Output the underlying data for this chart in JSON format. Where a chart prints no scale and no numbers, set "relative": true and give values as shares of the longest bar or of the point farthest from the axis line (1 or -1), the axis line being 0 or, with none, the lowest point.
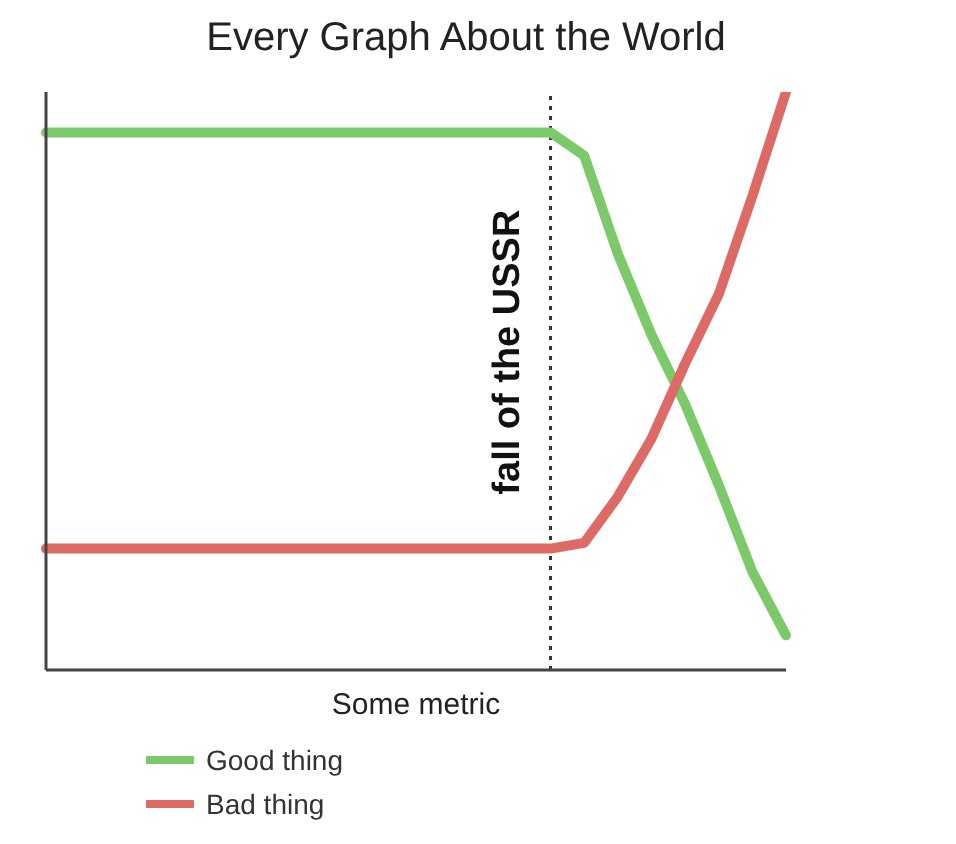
{
  "chart_data": {
    "type": "line",
    "title": "Every Graph About the World",
    "xlabel": "Some metric",
    "relative": true,
    "legend": "bottom left",
    "marker": "none",
    "line_style": "solid",
    "grid": false,
    "categories": [
      null,
      null,
      null,
      null,
      null,
      null,
      null,
      null,
      null,
      null,
      null,
      null,
      null,
      null,
      null,
      null,
      null,
      null,
      null,
      null,
      null,
      null,
      null
    ],
    "annotations": [
      "fall of the USSR"
    ],
    "series": [
      {
        "name": "Good thing",
        "color": "#7cc96a",
        "values": [
          0.93,
          0.93,
          0.93,
          0.93,
          0.93,
          0.93,
          0.93,
          0.93,
          0.93,
          0.93,
          0.93,
          0.93,
          0.93,
          0.93,
          0.93,
          0.93,
          0.89,
          0.72,
          0.58,
          0.46,
          0.32,
          0.17,
          0.06
        ]
      },
      {
        "name": "Bad thing",
        "color": "#de6a66",
        "values": [
          0.21,
          0.21,
          0.21,
          0.21,
          0.21,
          0.21,
          0.21,
          0.21,
          0.21,
          0.21,
          0.21,
          0.21,
          0.21,
          0.21,
          0.21,
          0.21,
          0.22,
          0.3,
          0.4,
          0.53,
          0.65,
          0.82,
          1
        ]
      }
    ]
  }
}
